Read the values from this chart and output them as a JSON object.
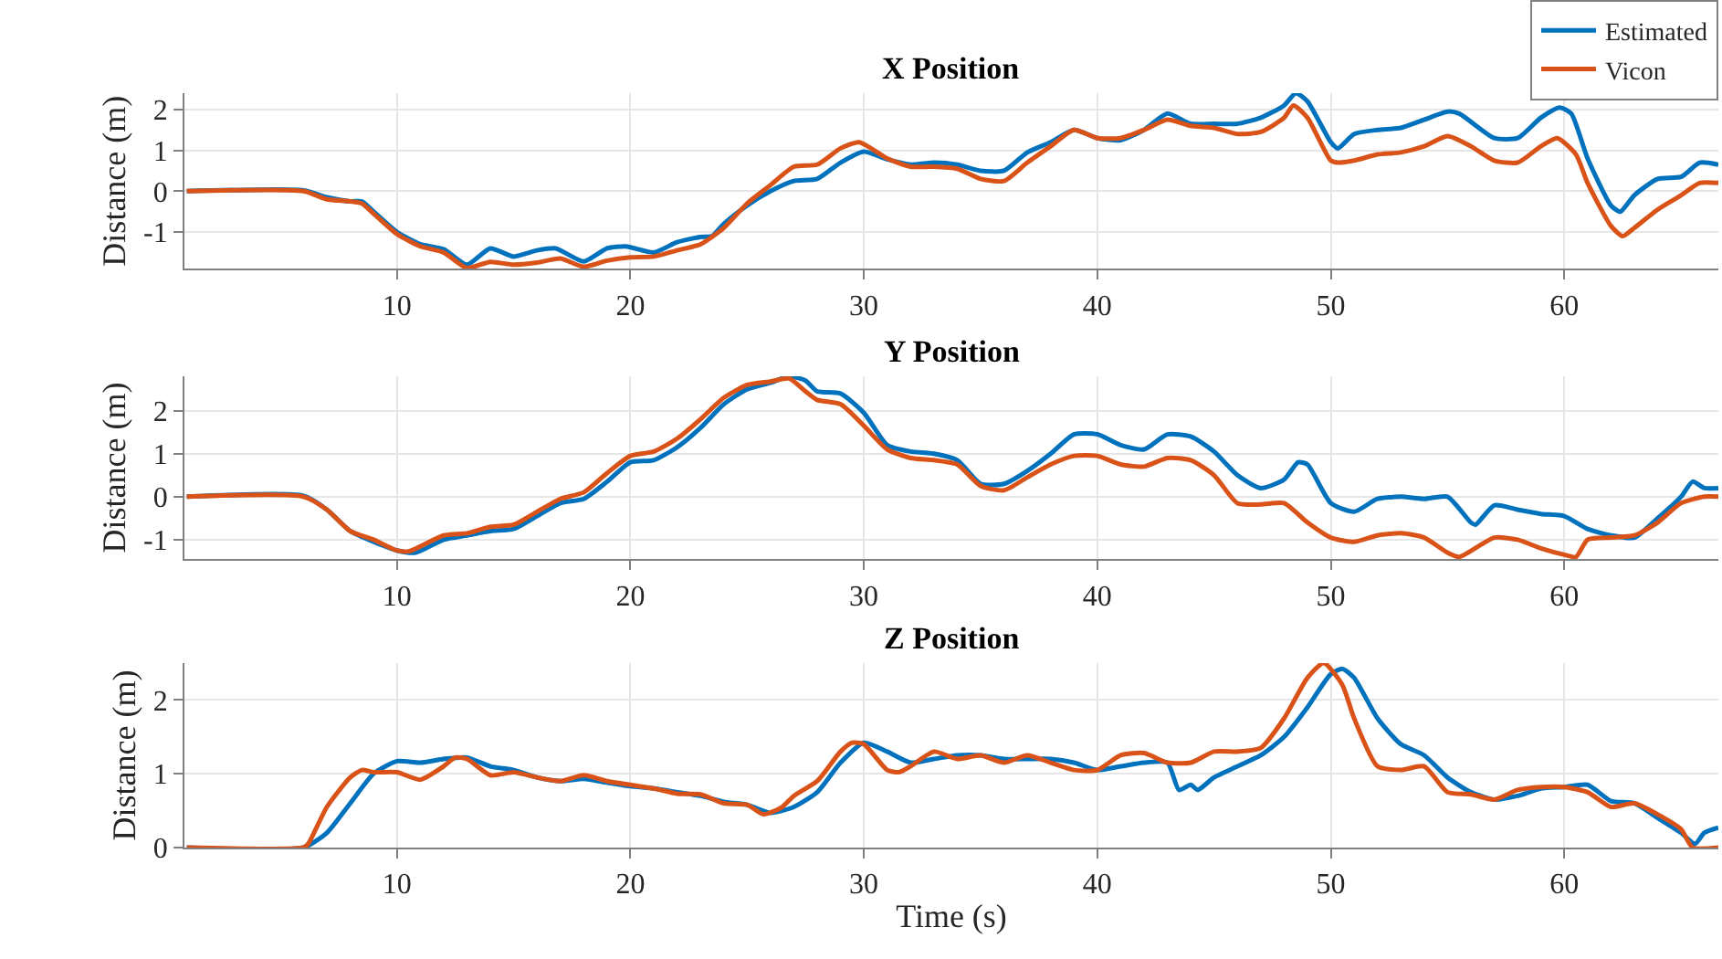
{
  "chart_data": [
    {
      "type": "line",
      "title": "X Position",
      "ylabel": "Distance (m)",
      "xlim": [
        0.9,
        66.6
      ],
      "xticks": [
        10,
        20,
        30,
        40,
        50,
        60
      ],
      "ylim": [
        -1.9,
        2.4
      ],
      "yticks": [
        -1,
        0,
        1,
        2
      ],
      "grid": true,
      "legend": "top right",
      "series": [
        {
          "name": "Estimated",
          "color": "#0072bd",
          "x": [
            1,
            6,
            7,
            8,
            8.5,
            9,
            10,
            11,
            12,
            13,
            14,
            15,
            16,
            16.8,
            18,
            19,
            19.8,
            21,
            22,
            23,
            23.5,
            24,
            25,
            26,
            27,
            28,
            29,
            30,
            31,
            32,
            33,
            34,
            35,
            36,
            37,
            38,
            39,
            40,
            41,
            42,
            43,
            44,
            45,
            46,
            47,
            48,
            48.5,
            49,
            50,
            50.3,
            51,
            52,
            53,
            54,
            55,
            55.5,
            57,
            58,
            59,
            59.8,
            60.3,
            61,
            62,
            62.4,
            63,
            64,
            65,
            65.8,
            66.6
          ],
          "values": [
            0,
            0.02,
            -0.15,
            -0.25,
            -0.25,
            -0.5,
            -1.0,
            -1.3,
            -1.42,
            -1.8,
            -1.4,
            -1.6,
            -1.45,
            -1.4,
            -1.72,
            -1.4,
            -1.35,
            -1.5,
            -1.25,
            -1.12,
            -1.1,
            -0.8,
            -0.35,
            0,
            0.25,
            0.3,
            0.7,
            0.97,
            0.78,
            0.65,
            0.7,
            0.65,
            0.5,
            0.5,
            0.95,
            1.2,
            1.5,
            1.3,
            1.25,
            1.5,
            1.9,
            1.65,
            1.65,
            1.65,
            1.8,
            2.1,
            2.4,
            2.2,
            1.2,
            1.05,
            1.4,
            1.5,
            1.55,
            1.75,
            1.95,
            1.9,
            1.3,
            1.3,
            1.8,
            2.05,
            1.9,
            0.8,
            -0.35,
            -0.5,
            -0.1,
            0.3,
            0.35,
            0.7,
            0.65
          ]
        },
        {
          "name": "Vicon",
          "color": "#d95319",
          "x": [
            1,
            6,
            7,
            8,
            8.5,
            9,
            10,
            11,
            12,
            13,
            14,
            15,
            16,
            17,
            18,
            19,
            20,
            21,
            22,
            23,
            24,
            25,
            26,
            27,
            28,
            29,
            29.8,
            31,
            32,
            33,
            34,
            35,
            36,
            37,
            38,
            39,
            40,
            41,
            42,
            43,
            44,
            45,
            46,
            47,
            48,
            48.4,
            49,
            50,
            50.3,
            51,
            52,
            53,
            54,
            55,
            56,
            57,
            58,
            59,
            59.7,
            60.5,
            61,
            62,
            62.5,
            63,
            64,
            65,
            65.8,
            66.6
          ],
          "values": [
            0,
            0,
            -0.2,
            -0.25,
            -0.3,
            -0.55,
            -1.05,
            -1.35,
            -1.5,
            -1.88,
            -1.73,
            -1.8,
            -1.75,
            -1.65,
            -1.85,
            -1.7,
            -1.62,
            -1.6,
            -1.45,
            -1.3,
            -0.9,
            -0.3,
            0.15,
            0.6,
            0.65,
            1.05,
            1.2,
            0.8,
            0.6,
            0.6,
            0.55,
            0.3,
            0.25,
            0.7,
            1.1,
            1.5,
            1.3,
            1.3,
            1.5,
            1.75,
            1.6,
            1.55,
            1.4,
            1.45,
            1.8,
            2.1,
            1.8,
            0.75,
            0.7,
            0.75,
            0.9,
            0.95,
            1.1,
            1.35,
            1.1,
            0.75,
            0.7,
            1.1,
            1.3,
            0.9,
            0.2,
            -0.85,
            -1.1,
            -0.9,
            -0.45,
            -0.1,
            0.2,
            0.2
          ]
        }
      ]
    },
    {
      "type": "line",
      "title": "Y Position",
      "ylabel": "Distance (m)",
      "xlim": [
        0.9,
        66.6
      ],
      "xticks": [
        10,
        20,
        30,
        40,
        50,
        60
      ],
      "ylim": [
        -1.45,
        2.8
      ],
      "yticks": [
        -1,
        0,
        1,
        2
      ],
      "grid": true,
      "series": [
        {
          "color": "#0072bd",
          "x": [
            1,
            6,
            7,
            8,
            9,
            10,
            10.8,
            12,
            13,
            14,
            15,
            16,
            17,
            18,
            19,
            20,
            21,
            22,
            23,
            24,
            25,
            26,
            26.8,
            27.5,
            28,
            29,
            30,
            31,
            32,
            33,
            34,
            35,
            36,
            37,
            38,
            39,
            40,
            41,
            42,
            43,
            44,
            45,
            46,
            47,
            48,
            48.6,
            49,
            50,
            51,
            52,
            53,
            54,
            55,
            56,
            56.2,
            57,
            58,
            59,
            60,
            61,
            62,
            63,
            64,
            65,
            65.5,
            66,
            66.6
          ],
          "values": [
            0,
            0.02,
            -0.3,
            -0.8,
            -1.05,
            -1.25,
            -1.3,
            -1.0,
            -0.9,
            -0.8,
            -0.75,
            -0.45,
            -0.15,
            -0.05,
            0.35,
            0.8,
            0.85,
            1.15,
            1.6,
            2.15,
            2.5,
            2.65,
            2.8,
            2.7,
            2.45,
            2.4,
            1.95,
            1.2,
            1.05,
            1.0,
            0.85,
            0.3,
            0.3,
            0.6,
            1.0,
            1.45,
            1.45,
            1.2,
            1.1,
            1.45,
            1.4,
            1.05,
            0.5,
            0.2,
            0.4,
            0.8,
            0.75,
            -0.15,
            -0.35,
            -0.05,
            0.0,
            -0.05,
            0.0,
            -0.6,
            -0.65,
            -0.2,
            -0.3,
            -0.4,
            -0.45,
            -0.75,
            -0.9,
            -0.95,
            -0.5,
            0.0,
            0.35,
            0.2,
            0.2
          ]
        },
        {
          "color": "#d95319",
          "x": [
            1,
            6,
            7,
            8,
            9,
            10,
            10.5,
            12,
            13,
            14,
            15,
            16,
            17,
            18,
            19,
            20,
            21,
            22,
            23,
            24,
            25,
            26,
            26.8,
            27.5,
            28,
            29,
            30,
            31,
            32,
            33,
            34,
            35,
            36,
            37,
            38,
            39,
            40,
            41,
            42,
            43,
            44,
            45,
            46,
            47,
            48,
            49,
            50,
            51,
            52,
            53,
            54,
            55,
            55.5,
            57,
            58,
            59,
            60,
            60.5,
            61,
            62,
            63,
            64,
            65,
            66,
            66.6
          ],
          "values": [
            0,
            0,
            -0.3,
            -0.8,
            -1.0,
            -1.25,
            -1.27,
            -0.9,
            -0.85,
            -0.7,
            -0.65,
            -0.35,
            -0.05,
            0.1,
            0.55,
            0.95,
            1.05,
            1.35,
            1.8,
            2.3,
            2.6,
            2.68,
            2.75,
            2.45,
            2.25,
            2.15,
            1.65,
            1.1,
            0.9,
            0.85,
            0.75,
            0.25,
            0.15,
            0.45,
            0.75,
            0.95,
            0.95,
            0.75,
            0.7,
            0.9,
            0.85,
            0.5,
            -0.15,
            -0.18,
            -0.15,
            -0.6,
            -0.95,
            -1.05,
            -0.9,
            -0.85,
            -0.95,
            -1.3,
            -1.4,
            -0.95,
            -1.0,
            -1.2,
            -1.35,
            -1.4,
            -1.0,
            -0.95,
            -0.9,
            -0.6,
            -0.15,
            0.0,
            0.0
          ]
        }
      ]
    },
    {
      "type": "line",
      "title": "Z Position",
      "xlabel": "Time (s)",
      "ylabel": "Distance (m)",
      "xlim": [
        0.9,
        66.6
      ],
      "xticks": [
        10,
        20,
        30,
        40,
        50,
        60
      ],
      "ylim": [
        0,
        2.5
      ],
      "yticks": [
        0,
        1,
        2
      ],
      "grid": true,
      "series": [
        {
          "color": "#0072bd",
          "x": [
            1,
            6,
            7,
            8,
            9,
            10,
            11,
            12,
            13,
            14,
            15,
            16,
            17,
            18,
            19,
            20,
            21,
            22,
            23,
            24,
            25,
            26,
            27,
            28,
            29,
            30,
            31,
            32,
            33,
            34,
            35,
            36,
            37,
            38,
            39,
            40,
            41,
            42,
            43,
            43.5,
            44,
            44.3,
            45,
            46,
            47,
            48,
            49,
            50,
            50.5,
            51,
            52,
            53,
            54,
            55,
            56,
            57,
            58,
            59,
            60,
            61,
            62,
            63,
            64,
            65,
            65.6,
            66,
            66.6
          ],
          "values": [
            0,
            0,
            0.2,
            0.6,
            1.0,
            1.17,
            1.15,
            1.2,
            1.22,
            1.1,
            1.05,
            0.95,
            0.9,
            0.93,
            0.88,
            0.83,
            0.8,
            0.75,
            0.7,
            0.62,
            0.58,
            0.47,
            0.55,
            0.75,
            1.15,
            1.42,
            1.3,
            1.15,
            1.2,
            1.25,
            1.25,
            1.2,
            1.2,
            1.2,
            1.15,
            1.05,
            1.1,
            1.15,
            1.15,
            0.78,
            0.85,
            0.78,
            0.95,
            1.1,
            1.25,
            1.5,
            1.9,
            2.35,
            2.42,
            2.3,
            1.75,
            1.4,
            1.25,
            0.95,
            0.75,
            0.65,
            0.7,
            0.8,
            0.82,
            0.85,
            0.63,
            0.6,
            0.4,
            0.2,
            0.05,
            0.2,
            0.27
          ]
        },
        {
          "color": "#d95319",
          "x": [
            1,
            6,
            6.2,
            7,
            8,
            8.5,
            9,
            10,
            11,
            12,
            12.5,
            13,
            14,
            15,
            16,
            17,
            18,
            19,
            20,
            21,
            22,
            23,
            24,
            25,
            25.7,
            26.5,
            27,
            28,
            29,
            29.5,
            30,
            31,
            31.5,
            32,
            33,
            34,
            35,
            36,
            37,
            38,
            39,
            40,
            41,
            42,
            43,
            44,
            45,
            46,
            47,
            48,
            49,
            49.7,
            50.5,
            51,
            52,
            53,
            54,
            55,
            56,
            57,
            58,
            59,
            60,
            61,
            62,
            63,
            64,
            65,
            65.5,
            66.6
          ],
          "values": [
            0,
            0,
            0.05,
            0.55,
            0.95,
            1.05,
            1.02,
            1.02,
            0.92,
            1.1,
            1.22,
            1.2,
            0.98,
            1.02,
            0.95,
            0.9,
            0.98,
            0.9,
            0.85,
            0.8,
            0.73,
            0.72,
            0.6,
            0.58,
            0.45,
            0.55,
            0.7,
            0.9,
            1.3,
            1.42,
            1.4,
            1.05,
            1.02,
            1.1,
            1.3,
            1.2,
            1.25,
            1.15,
            1.25,
            1.15,
            1.05,
            1.05,
            1.25,
            1.28,
            1.15,
            1.15,
            1.3,
            1.3,
            1.35,
            1.75,
            2.3,
            2.5,
            2.2,
            1.75,
            1.1,
            1.05,
            1.1,
            0.75,
            0.72,
            0.65,
            0.78,
            0.82,
            0.82,
            0.75,
            0.55,
            0.6,
            0.45,
            0.25,
            0.0,
            0.0
          ]
        }
      ]
    }
  ]
}
